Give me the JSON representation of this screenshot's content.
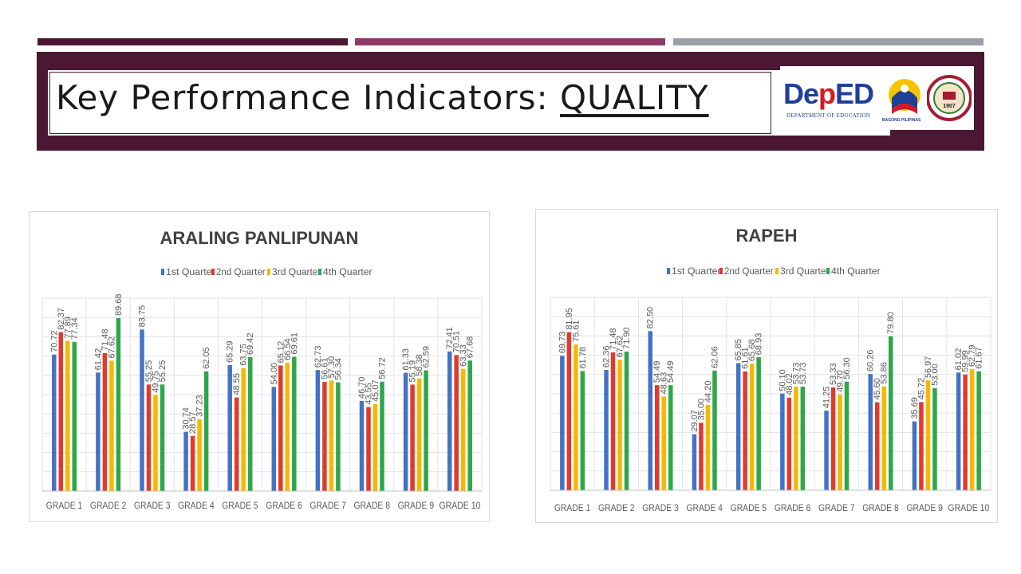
{
  "slide": {
    "title_prefix": "Key Performance Indicators: ",
    "title_emph": "QUALITY",
    "logo_deped_blue1": "De",
    "logo_deped_red": "p",
    "logo_deped_blue2": "ED",
    "logo_deped_sub": "DEPARTMENT OF EDUCATION",
    "logo_bagong": "BAGONG PILIPINAS",
    "logo_seal_year": "1907"
  },
  "colors": {
    "accent": "#4a1832",
    "accent2": "#8e3a66",
    "gray": "#9aa0a6",
    "series": [
      "#4472c4",
      "#e03a2f",
      "#f5b800",
      "#2ea64a"
    ]
  },
  "chart_data": [
    {
      "type": "bar",
      "title": "ARALING PANLIPUNAN",
      "legend": "top",
      "categories": [
        "GRADE 1",
        "GRADE 2",
        "GRADE 3",
        "GRADE 4",
        "GRADE 5",
        "GRADE 6",
        "GRADE 7",
        "GRADE 8",
        "GRADE 9",
        "GRADE 10"
      ],
      "series": [
        {
          "name": "1st Quarter",
          "values": [
            70.72,
            61.42,
            83.75,
            30.74,
            65.29,
            54.0,
            62.73,
            46.7,
            61.33,
            72.41
          ]
        },
        {
          "name": "2nd Quarter",
          "values": [
            82.37,
            71.48,
            55.25,
            28.57,
            48.55,
            65.12,
            56.61,
            43.55,
            55.19,
            70.51
          ]
        },
        {
          "name": "3rd Quarter",
          "values": [
            77.89,
            67.62,
            49.75,
            37.23,
            63.75,
            66.54,
            57.3,
            45.07,
            58.38,
            63.33
          ]
        },
        {
          "name": "4th Quarter",
          "values": [
            77.34,
            89.68,
            55.25,
            62.05,
            69.42,
            69.61,
            56.34,
            56.72,
            62.59,
            67.68
          ]
        }
      ],
      "labels": [
        [
          "70.72",
          "61.42",
          "83.75",
          "30.74",
          "65.29",
          "54.00",
          "62.73",
          "46.70",
          "61.33",
          "72.41"
        ],
        [
          "82.37",
          "71.48",
          "55.25",
          "28.57",
          "48.55",
          "65.12",
          "56.61",
          "43.55",
          "55.19",
          "70.51"
        ],
        [
          "77.89",
          "67.62",
          "49.75",
          "37.23",
          "63.75",
          "66.54",
          "57.30",
          "45.07",
          "58.38",
          "63.33"
        ],
        [
          "77.34",
          "89.68",
          "55.25",
          "62.05",
          "69.42",
          "69.61",
          "56.34",
          "56.72",
          "62.59",
          "67.68"
        ]
      ],
      "ylim": [
        0,
        100
      ],
      "grid": true
    },
    {
      "type": "bar",
      "title": "RAPEH",
      "legend": "top",
      "categories": [
        "GRADE 1",
        "GRADE 2",
        "GRADE 3",
        "GRADE 4",
        "GRADE 5",
        "GRADE 6",
        "GRADE 7",
        "GRADE 8",
        "GRADE 9",
        "GRADE 10"
      ],
      "series": [
        {
          "name": "1st Quarter",
          "values": [
            69.73,
            62.36,
            82.5,
            29.07,
            65.85,
            50.1,
            41.25,
            60.26,
            35.69,
            61.02
          ]
        },
        {
          "name": "2nd Quarter",
          "values": [
            81.95,
            71.48,
            54.49,
            35.0,
            61.61,
            48.02,
            53.33,
            45.6,
            45.72,
            59.99
          ]
        },
        {
          "name": "3rd Quarter",
          "values": [
            75.61,
            67.62,
            48.63,
            44.2,
            65.68,
            53.73,
            49.7,
            53.86,
            56.97,
            62.79
          ]
        },
        {
          "name": "4th Quarter",
          "values": [
            61.78,
            71.9,
            54.49,
            62.06,
            68.93,
            53.73,
            56.3,
            79.8,
            53.0,
            61.67
          ]
        }
      ],
      "labels": [
        [
          "69.73",
          "62.36",
          "82.50",
          "29.07",
          "65.85",
          "50.10",
          "41.25",
          "60.26",
          "35.69",
          "61.02"
        ],
        [
          "81.95",
          "71.48",
          "54.49",
          "35.00",
          "61.61",
          "48.02",
          "53.33",
          "45.60",
          "45.72",
          "59.99"
        ],
        [
          "75.61",
          "67.62",
          "48.63",
          "44.20",
          "65.68",
          "53.73",
          "49.70",
          "53.86",
          "56.97",
          "62.79"
        ],
        [
          "61.78",
          "71.90",
          "54.49",
          "62.06",
          "68.93",
          "53.73",
          "56.30",
          "79.80",
          "53.00",
          "61.67"
        ]
      ],
      "ylim": [
        0,
        100
      ],
      "grid": true
    }
  ]
}
